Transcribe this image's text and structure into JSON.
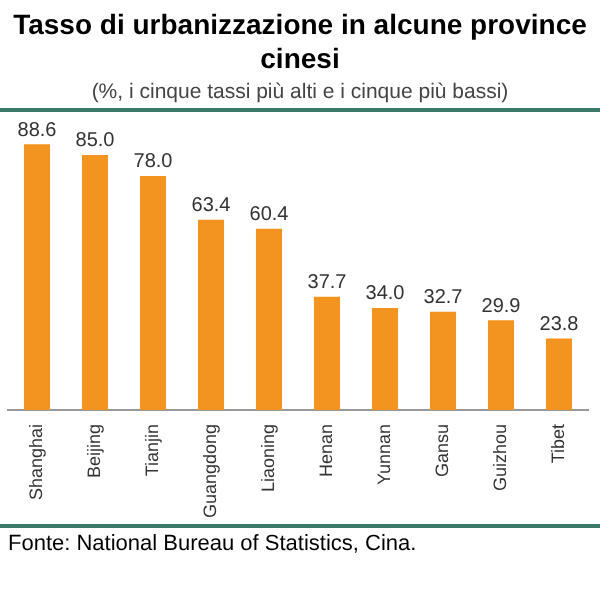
{
  "chart_data": {
    "type": "bar",
    "title": "Tasso di urbanizzazione in alcune province cinesi",
    "subtitle": "(%, i cinque tassi più alti e i cinque più bassi)",
    "categories": [
      "Shanghai",
      "Beijing",
      "Tianjin",
      "Guangdong",
      "Liaoning",
      "Henan",
      "Yunnan",
      "Gansu",
      "Guizhou",
      "Tibet"
    ],
    "values": [
      88.6,
      85.0,
      78.0,
      63.4,
      60.4,
      37.7,
      34.0,
      32.7,
      29.9,
      23.8
    ],
    "value_labels": [
      "88.6",
      "85.0",
      "78.0",
      "63.4",
      "60.4",
      "37.7",
      "34.0",
      "32.7",
      "29.9",
      "23.8"
    ],
    "color": "#f39320",
    "grid": false,
    "legend": false,
    "tick_labels": "x",
    "annotations": [
      "Fonte: National Bureau of Statistics, Cina."
    ]
  }
}
